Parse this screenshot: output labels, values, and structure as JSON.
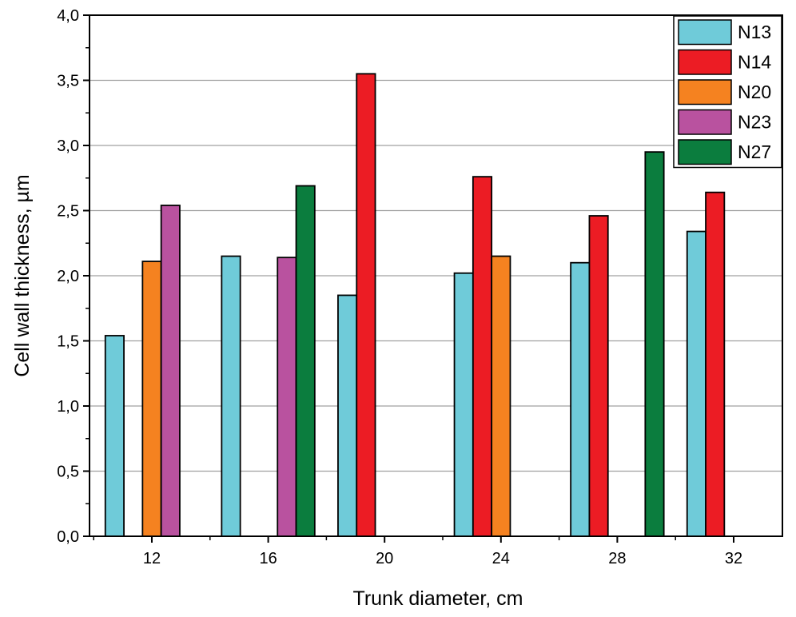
{
  "chart_data": {
    "type": "bar",
    "title": "",
    "xlabel": "Trunk diameter, cm",
    "ylabel": "Cell wall thickness, µm",
    "ylim": [
      0,
      4.0
    ],
    "yticks": [
      0,
      0.5,
      1.0,
      1.5,
      2.0,
      2.5,
      3.0,
      3.5,
      4.0
    ],
    "ytick_labels": [
      "0,0",
      "0,5",
      "1,0",
      "1,5",
      "2,0",
      "2,5",
      "3,0",
      "3,5",
      "4,0"
    ],
    "categories": [
      "12",
      "16",
      "20",
      "24",
      "28",
      "32"
    ],
    "grid": "horizontal",
    "legend_position": "top-right",
    "series": [
      {
        "name": "N13",
        "color": "#6fcbd9",
        "values": [
          1.54,
          2.15,
          1.85,
          2.02,
          2.1,
          2.34
        ]
      },
      {
        "name": "N14",
        "color": "#ec1c24",
        "values": [
          null,
          null,
          3.55,
          2.76,
          2.46,
          2.64
        ]
      },
      {
        "name": "N20",
        "color": "#f58220",
        "values": [
          2.11,
          null,
          null,
          2.15,
          null,
          null
        ]
      },
      {
        "name": "N23",
        "color": "#b9529f",
        "values": [
          2.54,
          2.14,
          null,
          null,
          null,
          null
        ]
      },
      {
        "name": "N27",
        "color": "#0b7d3e",
        "values": [
          null,
          2.69,
          null,
          null,
          2.95,
          null
        ]
      }
    ]
  }
}
